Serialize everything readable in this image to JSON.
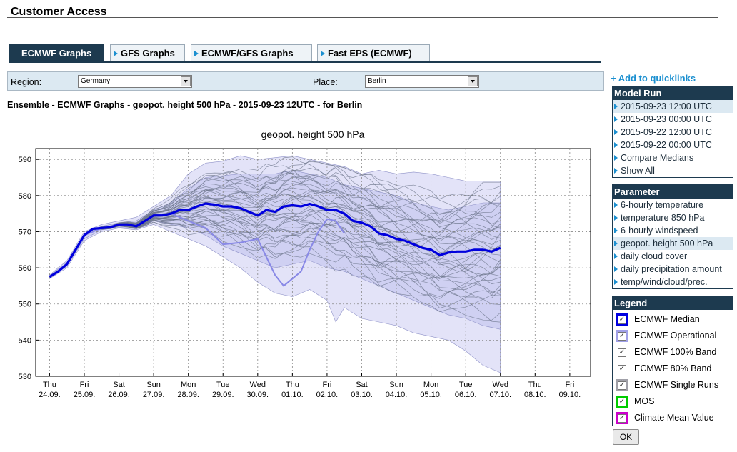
{
  "page": {
    "title": "Customer Access"
  },
  "tabs": [
    {
      "label": "ECMWF Graphs",
      "active": true
    },
    {
      "label": "GFS Graphs",
      "active": false
    },
    {
      "label": "ECMWF/GFS Graphs",
      "active": false
    },
    {
      "label": "Fast EPS (ECMWF)",
      "active": false
    }
  ],
  "selectors": {
    "region_label": "Region:",
    "region_value": "Germany",
    "place_label": "Place:",
    "place_value": "Berlin"
  },
  "graph_caption": "Ensemble - ECMWF Graphs - geopot. height 500 hPa - 2015-09-23 12UTC - for Berlin",
  "quicklinks": {
    "label": "+ Add to quicklinks"
  },
  "model_run": {
    "title": "Model Run",
    "items": [
      {
        "label": "2015-09-23 12:00 UTC",
        "selected": true
      },
      {
        "label": "2015-09-23 00:00 UTC",
        "selected": false
      },
      {
        "label": "2015-09-22 12:00 UTC",
        "selected": false
      },
      {
        "label": "2015-09-22 00:00 UTC",
        "selected": false
      },
      {
        "label": "Compare Medians",
        "selected": false
      },
      {
        "label": "Show All",
        "selected": false
      }
    ]
  },
  "parameter": {
    "title": "Parameter",
    "items": [
      {
        "label": "6-hourly temperature",
        "selected": false
      },
      {
        "label": "temperature 850 hPa",
        "selected": false
      },
      {
        "label": "6-hourly windspeed",
        "selected": false
      },
      {
        "label": "geopot. height 500 hPa",
        "selected": true
      },
      {
        "label": "daily cloud cover",
        "selected": false
      },
      {
        "label": "daily precipitation amount",
        "selected": false
      },
      {
        "label": "temp/wind/cloud/prec.",
        "selected": false
      }
    ]
  },
  "legend": {
    "title": "Legend",
    "items": [
      {
        "label": "ECMWF Median",
        "color": "#0000e0",
        "checked": true,
        "swatch": true
      },
      {
        "label": "ECMWF Operational",
        "color": "#a0a0e8",
        "checked": true,
        "swatch": true
      },
      {
        "label": "ECMWF 100% Band",
        "color": "",
        "checked": true,
        "swatch": false
      },
      {
        "label": "ECMWF 80% Band",
        "color": "",
        "checked": true,
        "swatch": false
      },
      {
        "label": "ECMWF Single Runs",
        "color": "#a0a0a8",
        "checked": true,
        "swatch": true
      },
      {
        "label": "MOS",
        "color": "#00cc00",
        "checked": true,
        "swatch": true
      },
      {
        "label": "Climate Mean Value",
        "color": "#cc00cc",
        "checked": true,
        "swatch": true
      }
    ]
  },
  "ok_button": {
    "label": "OK"
  },
  "colors": {
    "median": "#0000dd",
    "operational": "#8888e6",
    "band100": "#e3e3f8",
    "band80": "#cfd0f2",
    "single_runs": "#6a7388",
    "grid": "#888888"
  },
  "chart_data": {
    "type": "line",
    "title": "geopot. height 500 hPa",
    "xlabel": "",
    "ylabel": "",
    "ylim": [
      530,
      593
    ],
    "yticks": [
      530,
      540,
      550,
      560,
      570,
      580,
      590
    ],
    "x_tick_labels": [
      {
        "day": "Thu",
        "date": "24.09."
      },
      {
        "day": "Fri",
        "date": "25.09."
      },
      {
        "day": "Sat",
        "date": "26.09."
      },
      {
        "day": "Sun",
        "date": "27.09."
      },
      {
        "day": "Mon",
        "date": "28.09."
      },
      {
        "day": "Tue",
        "date": "29.09."
      },
      {
        "day": "Wed",
        "date": "30.09."
      },
      {
        "day": "Thu",
        "date": "01.10."
      },
      {
        "day": "Fri",
        "date": "02.10."
      },
      {
        "day": "Sat",
        "date": "03.10."
      },
      {
        "day": "Sun",
        "date": "04.10."
      },
      {
        "day": "Mon",
        "date": "05.10."
      },
      {
        "day": "Tue",
        "date": "06.10."
      },
      {
        "day": "Wed",
        "date": "07.10."
      },
      {
        "day": "Thu",
        "date": "08.10."
      },
      {
        "day": "Fri",
        "date": "09.10."
      }
    ],
    "x_note": "x values in days from the start of the plotted range (6-hourly steps)",
    "median": [
      [
        0,
        557.5
      ],
      [
        0.25,
        559
      ],
      [
        0.5,
        561
      ],
      [
        0.75,
        565
      ],
      [
        1,
        569
      ],
      [
        1.25,
        570.8
      ],
      [
        1.5,
        571
      ],
      [
        1.75,
        571.2
      ],
      [
        2,
        572
      ],
      [
        2.25,
        572
      ],
      [
        2.5,
        571.5
      ],
      [
        2.75,
        573
      ],
      [
        3,
        574.5
      ],
      [
        3.25,
        574.5
      ],
      [
        3.5,
        575
      ],
      [
        3.75,
        576
      ],
      [
        4,
        576
      ],
      [
        4.25,
        577
      ],
      [
        4.5,
        577.8
      ],
      [
        4.75,
        577.5
      ],
      [
        5,
        577
      ],
      [
        5.25,
        577
      ],
      [
        5.5,
        576.5
      ],
      [
        5.75,
        575.5
      ],
      [
        6,
        574.5
      ],
      [
        6.25,
        576
      ],
      [
        6.5,
        575.5
      ],
      [
        6.75,
        577
      ],
      [
        7,
        577.3
      ],
      [
        7.25,
        577
      ],
      [
        7.5,
        577.7
      ],
      [
        7.75,
        577
      ],
      [
        8,
        576
      ],
      [
        8.25,
        576
      ],
      [
        8.5,
        575
      ],
      [
        8.75,
        573
      ],
      [
        9,
        572.5
      ],
      [
        9.25,
        571.5
      ],
      [
        9.5,
        569.5
      ],
      [
        9.75,
        569
      ],
      [
        10,
        568
      ],
      [
        10.25,
        567.5
      ],
      [
        10.5,
        566.5
      ],
      [
        10.75,
        565.5
      ],
      [
        11,
        565
      ],
      [
        11.25,
        563.5
      ],
      [
        11.5,
        564.2
      ],
      [
        11.75,
        564.5
      ],
      [
        12,
        564.5
      ],
      [
        12.25,
        565
      ],
      [
        12.5,
        565
      ],
      [
        12.75,
        564.5
      ],
      [
        13,
        565.5
      ]
    ],
    "operational": [
      [
        0,
        557.5
      ],
      [
        0.5,
        561
      ],
      [
        1,
        569
      ],
      [
        1.5,
        571
      ],
      [
        2,
        572
      ],
      [
        2.5,
        571.5
      ],
      [
        3,
        574.5
      ],
      [
        3.5,
        575
      ],
      [
        4,
        573
      ],
      [
        4.5,
        571
      ],
      [
        5,
        566.5
      ],
      [
        5.5,
        567
      ],
      [
        6,
        568
      ],
      [
        6.25,
        563
      ],
      [
        6.5,
        558
      ],
      [
        6.75,
        555
      ],
      [
        7,
        557
      ],
      [
        7.25,
        559
      ],
      [
        7.5,
        565
      ],
      [
        7.75,
        570
      ],
      [
        8,
        573.5
      ],
      [
        8.25,
        573
      ],
      [
        8.5,
        569.5
      ]
    ],
    "band100_upper": [
      [
        0,
        558
      ],
      [
        0.5,
        562
      ],
      [
        1,
        570
      ],
      [
        1.5,
        572
      ],
      [
        2,
        573
      ],
      [
        2.5,
        574
      ],
      [
        3,
        577
      ],
      [
        3.5,
        580
      ],
      [
        4,
        586
      ],
      [
        4.5,
        589
      ],
      [
        5,
        589.5
      ],
      [
        5.5,
        591
      ],
      [
        6,
        590
      ],
      [
        6.5,
        590.5
      ],
      [
        7,
        591
      ],
      [
        7.5,
        590
      ],
      [
        8,
        589
      ],
      [
        8.5,
        588
      ],
      [
        9,
        586
      ],
      [
        9.5,
        587
      ],
      [
        10,
        586
      ],
      [
        10.5,
        586.5
      ],
      [
        11,
        586
      ],
      [
        11.5,
        585
      ],
      [
        12,
        584
      ],
      [
        12.5,
        584
      ],
      [
        13,
        584
      ]
    ],
    "band100_lower": [
      [
        0,
        557
      ],
      [
        0.5,
        560
      ],
      [
        1,
        567.5
      ],
      [
        1.5,
        570
      ],
      [
        2,
        571
      ],
      [
        2.5,
        570.5
      ],
      [
        3,
        572
      ],
      [
        3.5,
        570
      ],
      [
        4,
        568
      ],
      [
        4.5,
        566
      ],
      [
        5,
        563
      ],
      [
        5.5,
        560
      ],
      [
        6,
        556
      ],
      [
        6.5,
        553
      ],
      [
        7,
        552
      ],
      [
        7.5,
        554
      ],
      [
        8,
        551
      ],
      [
        8.25,
        545
      ],
      [
        8.5,
        549
      ],
      [
        9,
        546
      ],
      [
        9.5,
        545
      ],
      [
        10,
        544
      ],
      [
        10.5,
        542
      ],
      [
        11,
        541
      ],
      [
        11.5,
        540
      ],
      [
        12,
        537
      ],
      [
        12.5,
        533
      ],
      [
        13,
        531
      ]
    ],
    "band80_upper": [
      [
        0,
        557.8
      ],
      [
        0.5,
        561.5
      ],
      [
        1,
        569.5
      ],
      [
        1.5,
        571.5
      ],
      [
        2,
        572.5
      ],
      [
        2.5,
        573
      ],
      [
        3,
        576
      ],
      [
        3.5,
        578
      ],
      [
        4,
        582
      ],
      [
        4.5,
        585
      ],
      [
        5,
        585.5
      ],
      [
        5.5,
        586
      ],
      [
        6,
        586
      ],
      [
        6.5,
        586
      ],
      [
        7,
        587
      ],
      [
        7.5,
        586
      ],
      [
        8,
        585
      ],
      [
        8.5,
        583
      ],
      [
        9,
        582
      ],
      [
        9.5,
        581
      ],
      [
        10,
        580
      ],
      [
        10.5,
        578
      ],
      [
        11,
        577
      ],
      [
        11.5,
        576
      ],
      [
        12,
        577
      ],
      [
        12.5,
        578
      ],
      [
        13,
        578
      ]
    ],
    "band80_lower": [
      [
        0,
        557.2
      ],
      [
        0.5,
        560.5
      ],
      [
        1,
        568
      ],
      [
        1.5,
        570.5
      ],
      [
        2,
        571.2
      ],
      [
        2.5,
        570.8
      ],
      [
        3,
        573
      ],
      [
        3.5,
        572
      ],
      [
        4,
        571
      ],
      [
        4.5,
        569
      ],
      [
        5,
        566
      ],
      [
        5.5,
        564
      ],
      [
        6,
        562
      ],
      [
        6.5,
        560
      ],
      [
        7,
        561
      ],
      [
        7.5,
        562
      ],
      [
        8,
        560
      ],
      [
        8.5,
        559
      ],
      [
        9,
        557
      ],
      [
        9.5,
        555
      ],
      [
        10,
        553
      ],
      [
        10.5,
        551
      ],
      [
        11,
        549
      ],
      [
        11.5,
        547
      ],
      [
        12,
        546
      ],
      [
        12.5,
        544
      ],
      [
        13,
        543
      ]
    ]
  }
}
